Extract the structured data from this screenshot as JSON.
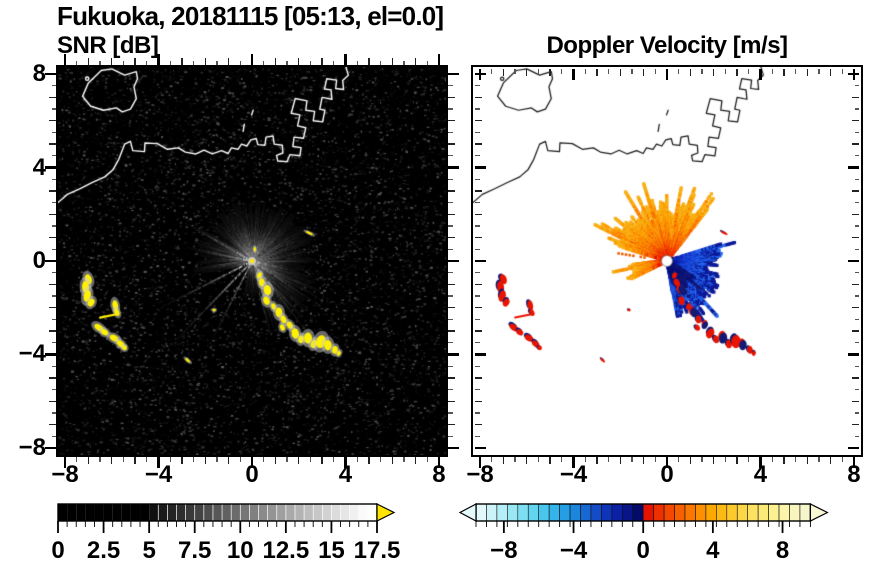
{
  "header": {
    "title": "Fukuoka, 20181115 [05:13, el=0.0]",
    "left_panel_title": "SNR [dB]",
    "right_panel_title": "Doppler Velocity [m/s]"
  },
  "axes": {
    "xlim": [
      -8.3,
      8.3
    ],
    "ylim": [
      -8.3,
      8.3
    ],
    "major_tick_values": [
      -8,
      -4,
      0,
      4,
      8
    ],
    "minor_tick_step": 0.5,
    "x_tick_labels": [
      "−8",
      "−4",
      "0",
      "4",
      "8"
    ],
    "y_tick_labels": [
      "8",
      "4",
      "0",
      "−4",
      "−8"
    ]
  },
  "chart_data": [
    {
      "type": "heatmap",
      "title": "SNR [dB]",
      "xlim": [
        -8.3,
        8.3
      ],
      "ylim": [
        -8.3,
        8.3
      ],
      "xticks": [
        -8,
        -4,
        0,
        4,
        8
      ],
      "yticks": [
        -8,
        -4,
        0,
        4,
        8
      ],
      "background_color": "#000000",
      "coast_color": "#ffffff",
      "radar_center": [
        0,
        0
      ],
      "radar_marker_color": "#ffe800",
      "colorbar": {
        "orientation": "horizontal",
        "range": [
          0,
          17.5
        ],
        "tick_label_values": [
          0,
          2.5,
          5,
          7.5,
          10,
          12.5,
          15,
          17.5
        ],
        "tick_labels": [
          "0",
          "2.5",
          "5",
          "7.5",
          "10",
          "12.5",
          "15",
          "17.5"
        ],
        "over_arrow_color": "#ffe400",
        "cell_colors": [
          "#000000",
          "#000000",
          "#000000",
          "#000000",
          "#000000",
          "#000000",
          "#000000",
          "#000000",
          "#000000",
          "#000000",
          "#101010",
          "#1a1a1a",
          "#242424",
          "#2e2e2e",
          "#393939",
          "#434343",
          "#4d4d4d",
          "#575757",
          "#616161",
          "#6c6c6c",
          "#767676",
          "#808080",
          "#8a8a8a",
          "#949494",
          "#9f9f9f",
          "#a9a9a9",
          "#b3b3b3",
          "#bdbdbd",
          "#c7c7c7",
          "#d2d2d2",
          "#dcdcdc",
          "#e6e6e6",
          "#f0f0f0",
          "#fafafa",
          "#ffffff"
        ]
      },
      "fan": {
        "sectors": [
          {
            "a0": 40,
            "a1": 140,
            "len": [
              1.5,
              2.7
            ],
            "bright": [
              0.4,
              1.0
            ]
          },
          {
            "a0": -12,
            "a1": 40,
            "len": [
              1.4,
              2.8
            ],
            "bright": [
              0.35,
              0.9
            ]
          },
          {
            "a0": -78,
            "a1": -12,
            "len": [
              1.5,
              3.3
            ],
            "bright": [
              0.4,
              1.0
            ]
          },
          {
            "a0": -102,
            "a1": -78,
            "len": [
              0.9,
              1.7
            ],
            "bright": [
              0.3,
              0.7
            ]
          },
          {
            "a0": 140,
            "a1": 196,
            "len": [
              1.3,
              2.6
            ],
            "bright": [
              0.35,
              0.9
            ],
            "gap": 0.3
          }
        ],
        "long_rays": [
          [
            207,
            4.35,
            0.85
          ],
          [
            226,
            4.7,
            0.95
          ],
          [
            243,
            3.7,
            0.75
          ],
          [
            150,
            3.3,
            0.9
          ],
          [
            168,
            2.9,
            0.8
          ],
          [
            -52,
            3.6,
            0.85
          ],
          [
            -33,
            3.1,
            0.7
          ]
        ]
      },
      "ship_echo_color": "#fff100"
    },
    {
      "type": "heatmap",
      "title": "Doppler Velocity [m/s]",
      "xlim": [
        -8.3,
        8.3
      ],
      "ylim": [
        -8.3,
        8.3
      ],
      "xticks": [
        -8,
        -4,
        0,
        4,
        8
      ],
      "yticks": [
        -8,
        -4,
        0,
        4,
        8
      ],
      "background_color": "#ffffff",
      "coast_color": "#1b1b1b",
      "radar_center": [
        0,
        0
      ],
      "radar_marker_color": "#ffffff",
      "colorbar": {
        "orientation": "horizontal",
        "range": [
          -9.6,
          9.6
        ],
        "tick_label_values": [
          -8,
          -4,
          0,
          4,
          8
        ],
        "tick_labels": [
          "−8",
          "−4",
          "0",
          "4",
          "8"
        ],
        "under_arrow_color": "#e4fafc",
        "over_arrow_color": "#f8f8d4",
        "cell_colors": [
          "#e2f8fa",
          "#ccf3f8",
          "#b4eef6",
          "#9ae7f4",
          "#7edff2",
          "#62d4f0",
          "#48c6ee",
          "#34b4ea",
          "#249ee4",
          "#1c86dc",
          "#1868d4",
          "#144cc8",
          "#1034b8",
          "#0c20a4",
          "#081488",
          "#040a68",
          "#e41400",
          "#ec3000",
          "#f24800",
          "#f66000",
          "#fa7800",
          "#fc9000",
          "#fca800",
          "#fcba14",
          "#fcca2c",
          "#fcd848",
          "#fce260",
          "#fcea78",
          "#fcf090",
          "#fcf4a8",
          "#f8f6bc",
          "#f6f6cc"
        ]
      },
      "fans": {
        "palette_pos": [
          "#e01400",
          "#ee3800",
          "#f65400",
          "#fa7000",
          "#fc8800",
          "#fc9c00",
          "#f8b014"
        ],
        "palette_neg": [
          "#0a1488",
          "#1028b8",
          "#1840d8",
          "#1f55e4",
          "#2366ec",
          "#0c1a98"
        ],
        "palette_navy": [
          "#060a60",
          "#0a1080",
          "#101874"
        ],
        "pos_sectors": [
          {
            "a0": 52,
            "a1": 163,
            "r": [
              1.0,
              2.7
            ]
          },
          {
            "a0": 184,
            "a1": 207,
            "r": [
              0.6,
              1.9
            ]
          }
        ],
        "neg_sectors": [
          {
            "a0": -80,
            "a1": 18,
            "r": [
              0.9,
              2.5
            ]
          }
        ],
        "navy_inner": {
          "a0": -74,
          "a1": -28,
          "r": [
            0.35,
            1.5
          ],
          "d": 0.55
        },
        "dotted_ray": {
          "a": 171,
          "r0": 0.5,
          "r1": 2.2,
          "color": "#f26000"
        }
      },
      "ship_echo_colors": {
        "body": "#e81400",
        "shadow": "#141a74"
      }
    }
  ],
  "features": {
    "ship_echoes": [
      [
        -7.0,
        -0.78,
        0.14,
        0.22,
        20
      ],
      [
        -7.12,
        -1.12,
        0.15,
        0.26,
        5
      ],
      [
        -7.05,
        -1.5,
        0.15,
        0.25,
        -15
      ],
      [
        -6.88,
        -1.78,
        0.13,
        0.18,
        -30
      ],
      [
        -5.85,
        -1.9,
        0.12,
        0.22,
        10
      ],
      [
        -5.78,
        -2.2,
        0.1,
        0.16,
        25
      ],
      [
        -6.55,
        -2.85,
        0.22,
        0.13,
        -35
      ],
      [
        -6.3,
        -3.05,
        0.16,
        0.12,
        -35
      ],
      [
        -5.9,
        -3.3,
        0.2,
        0.13,
        -30
      ],
      [
        -5.62,
        -3.55,
        0.18,
        0.12,
        -40
      ],
      [
        -5.45,
        -3.72,
        0.1,
        0.1,
        0
      ],
      [
        2.45,
        1.2,
        0.16,
        0.05,
        -25
      ],
      [
        -2.75,
        -4.25,
        0.13,
        0.05,
        -40
      ],
      [
        -1.62,
        -2.1,
        0.07,
        0.06,
        0
      ]
    ],
    "echo_line": [
      [
        -6.5,
        -2.42
      ],
      [
        -5.8,
        -2.28
      ]
    ],
    "trail_echoes": [
      [
        0.32,
        -0.62,
        0.1
      ],
      [
        0.42,
        -0.92,
        0.12
      ],
      [
        0.66,
        -1.25,
        0.16
      ],
      [
        0.62,
        -1.7,
        0.13
      ],
      [
        0.92,
        -1.95,
        0.1
      ],
      [
        1.15,
        -2.2,
        0.15
      ],
      [
        1.35,
        -2.5,
        0.12
      ],
      [
        1.3,
        -2.85,
        0.1
      ],
      [
        1.62,
        -2.75,
        0.12
      ],
      [
        1.85,
        -3.1,
        0.16
      ],
      [
        2.1,
        -3.35,
        0.12
      ],
      [
        2.4,
        -3.3,
        0.17
      ],
      [
        2.65,
        -3.55,
        0.13
      ],
      [
        2.95,
        -3.45,
        0.2
      ],
      [
        3.25,
        -3.6,
        0.16
      ],
      [
        3.55,
        -3.8,
        0.12
      ],
      [
        3.72,
        -3.95,
        0.08
      ]
    ],
    "center_speck": [
      0.12,
      0.5,
      0.05,
      0.1,
      0
    ],
    "coastline": {
      "island": [
        [
          -6.45,
          8.15
        ],
        [
          -7.0,
          7.62
        ],
        [
          -7.25,
          7.05
        ],
        [
          -6.9,
          6.62
        ],
        [
          -6.35,
          6.45
        ],
        [
          -5.8,
          6.55
        ],
        [
          -5.55,
          6.38
        ],
        [
          -5.2,
          6.5
        ],
        [
          -4.95,
          6.95
        ],
        [
          -5.05,
          7.45
        ],
        [
          -4.9,
          7.8
        ],
        [
          -4.95,
          8.1
        ],
        [
          -5.45,
          7.95
        ],
        [
          -6.0,
          8.22
        ],
        [
          -6.45,
          8.15
        ]
      ],
      "islet": [
        -7.05,
        7.8,
        0.07
      ],
      "mainland": [
        [
          -8.3,
          2.5
        ],
        [
          -7.9,
          2.85
        ],
        [
          -7.35,
          3.1
        ],
        [
          -6.85,
          3.35
        ],
        [
          -6.3,
          3.6
        ],
        [
          -5.95,
          3.9
        ],
        [
          -5.7,
          4.35
        ],
        [
          -5.45,
          5.0
        ],
        [
          -5.2,
          5.12
        ],
        [
          -5.1,
          4.72
        ],
        [
          -4.6,
          4.68
        ],
        [
          -4.58,
          5.05
        ],
        [
          -4.05,
          5.02
        ],
        [
          -3.62,
          4.78
        ],
        [
          -3.15,
          4.84
        ],
        [
          -2.85,
          4.66
        ],
        [
          -2.4,
          4.58
        ],
        [
          -2.05,
          4.74
        ],
        [
          -1.7,
          4.58
        ],
        [
          -1.3,
          4.72
        ],
        [
          -1.02,
          4.6
        ],
        [
          -0.88,
          4.84
        ],
        [
          -0.6,
          4.78
        ],
        [
          -0.45,
          5.0
        ],
        [
          -0.22,
          4.92
        ],
        [
          -0.05,
          5.18
        ],
        [
          0.18,
          5.24
        ],
        [
          0.25,
          4.98
        ],
        [
          0.55,
          4.95
        ],
        [
          0.6,
          5.3
        ],
        [
          0.9,
          5.35
        ],
        [
          0.95,
          5.0
        ],
        [
          1.3,
          4.95
        ],
        [
          1.32,
          4.62
        ],
        [
          1.05,
          4.52
        ],
        [
          1.1,
          4.28
        ],
        [
          1.5,
          4.25
        ],
        [
          1.62,
          4.55
        ],
        [
          2.05,
          4.5
        ],
        [
          2.1,
          4.85
        ],
        [
          1.75,
          4.9
        ],
        [
          1.8,
          5.3
        ],
        [
          2.2,
          5.25
        ],
        [
          2.3,
          5.7
        ],
        [
          1.95,
          5.78
        ],
        [
          2.05,
          6.25
        ],
        [
          1.68,
          6.32
        ],
        [
          1.85,
          6.95
        ],
        [
          2.35,
          6.85
        ],
        [
          2.3,
          6.45
        ],
        [
          2.68,
          6.4
        ],
        [
          2.62,
          6.0
        ],
        [
          3.02,
          5.95
        ],
        [
          3.12,
          6.45
        ],
        [
          2.9,
          6.5
        ],
        [
          3.0,
          7.0
        ],
        [
          3.42,
          6.92
        ],
        [
          3.38,
          7.32
        ],
        [
          3.1,
          7.36
        ],
        [
          3.2,
          7.8
        ],
        [
          3.62,
          7.74
        ],
        [
          3.58,
          7.38
        ],
        [
          3.92,
          7.34
        ],
        [
          3.88,
          7.72
        ],
        [
          4.12,
          7.95
        ],
        [
          4.02,
          8.3
        ]
      ],
      "marks": [
        [
          [
            -0.38,
            5.55
          ],
          [
            -0.33,
            5.85
          ]
        ],
        [
          [
            -0.02,
            6.25
          ],
          [
            0.05,
            6.45
          ]
        ]
      ]
    }
  }
}
